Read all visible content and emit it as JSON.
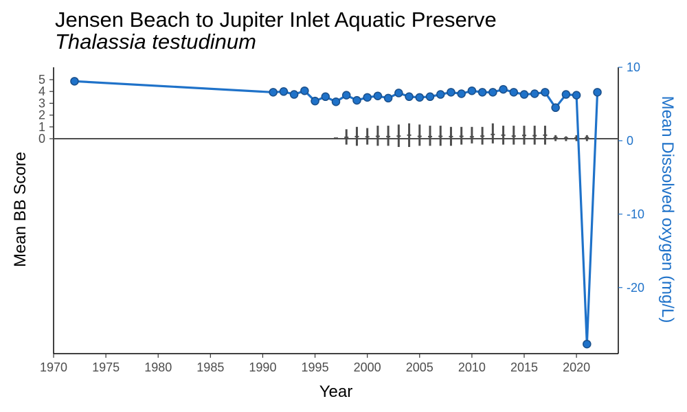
{
  "chart_data": {
    "type": "line",
    "title": "Jensen Beach to Jupiter Inlet Aquatic Preserve",
    "subtitle": "Thalassia testudinum",
    "xlabel": "Year",
    "ylabel_left": "Mean BB Score",
    "ylabel_right": "Mean Dissolved oxygen (mg/L)",
    "x_ticks": [
      1970,
      1975,
      1980,
      1985,
      1990,
      1995,
      2000,
      2005,
      2010,
      2015,
      2020
    ],
    "x_range": [
      1970,
      2024
    ],
    "y_left_ticks": [
      0,
      1,
      2,
      3,
      4,
      5
    ],
    "y_right_ticks": [
      -20,
      -10,
      0,
      10
    ],
    "y_right_range": [
      -29,
      10
    ],
    "colors": {
      "series": "#1f72c9",
      "series_edge": "#1a4f8a",
      "bb": "#4d4d4d",
      "axis": "#000000",
      "zero_line": "#4d4d4d"
    },
    "series": [
      {
        "axis": "right",
        "x": [
          1972,
          1991,
          1992,
          1993,
          1994,
          1995,
          1996,
          1997,
          1998,
          1999,
          2000,
          2001,
          2002,
          2003,
          2004,
          2005,
          2006,
          2007,
          2008,
          2009,
          2010,
          2011,
          2012,
          2013,
          2014,
          2015,
          2016,
          2017,
          2018,
          2019,
          2020,
          2021,
          2022
        ],
        "y": [
          8.1,
          6.6,
          6.7,
          6.3,
          6.8,
          5.4,
          6.0,
          5.3,
          6.2,
          5.5,
          5.9,
          6.1,
          5.8,
          6.5,
          6.0,
          5.9,
          6.0,
          6.3,
          6.6,
          6.4,
          6.8,
          6.6,
          6.6,
          7.0,
          6.6,
          6.3,
          6.4,
          6.6,
          4.5,
          6.3,
          6.2,
          -27.7,
          6.6
        ]
      }
    ],
    "bb_scores": {
      "axis": "left",
      "x": [
        1997,
        1998,
        1999,
        2000,
        2001,
        2002,
        2003,
        2004,
        2005,
        2006,
        2007,
        2008,
        2009,
        2010,
        2011,
        2012,
        2013,
        2014,
        2015,
        2016,
        2017,
        2018,
        2019,
        2020,
        2021
      ],
      "mean": [
        0.05,
        0.12,
        0.18,
        0.16,
        0.2,
        0.18,
        0.22,
        0.3,
        0.2,
        0.18,
        0.2,
        0.18,
        0.2,
        0.16,
        0.22,
        0.36,
        0.3,
        0.22,
        0.28,
        0.26,
        0.3,
        0.1,
        0.06,
        0.08,
        0.1
      ],
      "low": [
        -0.05,
        -0.5,
        -0.6,
        -0.5,
        -0.6,
        -0.6,
        -0.7,
        -0.7,
        -0.6,
        -0.6,
        -0.6,
        -0.6,
        -0.5,
        -0.4,
        -0.5,
        -0.4,
        -0.5,
        -0.5,
        -0.5,
        -0.5,
        -0.5,
        -0.2,
        -0.2,
        -0.2,
        -0.2
      ],
      "high": [
        0.05,
        0.8,
        1.0,
        0.9,
        1.1,
        1.1,
        1.2,
        1.3,
        1.2,
        1.1,
        1.1,
        1.0,
        1.0,
        1.0,
        1.0,
        1.3,
        1.1,
        1.1,
        1.1,
        1.1,
        1.1,
        0.3,
        0.2,
        0.3,
        0.3
      ]
    }
  }
}
